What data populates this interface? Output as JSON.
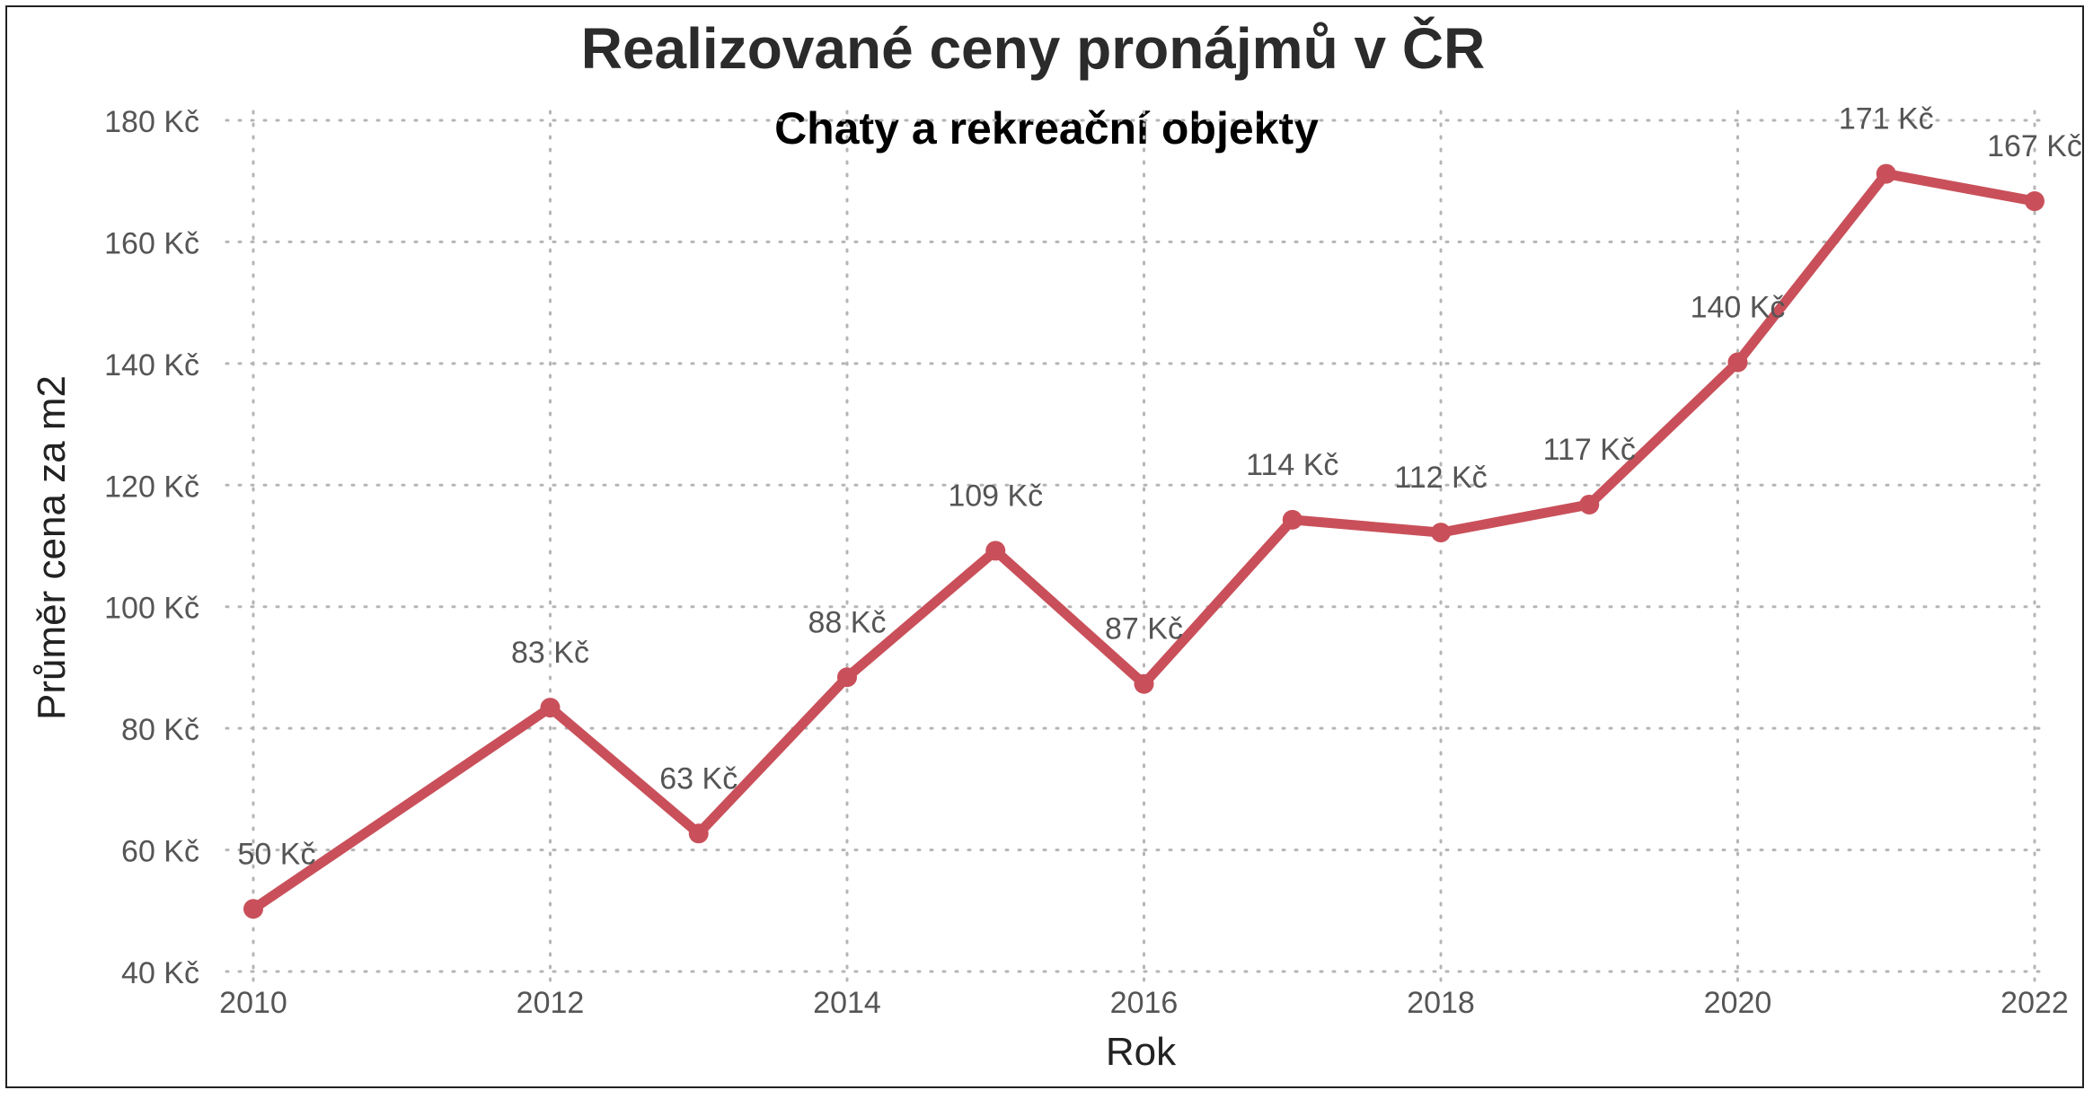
{
  "chart_data": {
    "type": "line",
    "title": "Realizované ceny pronájmů v ČR",
    "subtitle": "Chaty a rekreační objekty",
    "xlabel": "Rok",
    "ylabel": "Průměr cena za m2",
    "x_ticks": [
      "2010",
      "2012",
      "2014",
      "2016",
      "2018",
      "2020",
      "2022"
    ],
    "y_ticks": [
      "40 Kč",
      "60 Kč",
      "80 Kč",
      "100 Kč",
      "120 Kč",
      "140 Kč",
      "160 Kč",
      "180 Kč"
    ],
    "xlim": [
      2010,
      2022
    ],
    "ylim": [
      40,
      180
    ],
    "grid": true,
    "series": [
      {
        "color": "#c9505a",
        "points": [
          {
            "x": 2010,
            "y": 50.3,
            "label": "50 Kč"
          },
          {
            "x": 2012,
            "y": 83.4,
            "label": "83 Kč"
          },
          {
            "x": 2013,
            "y": 62.7,
            "label": "63 Kč"
          },
          {
            "x": 2014,
            "y": 88.4,
            "label": "88 Kč"
          },
          {
            "x": 2015,
            "y": 109.2,
            "label": "109 Kč"
          },
          {
            "x": 2016,
            "y": 87.3,
            "label": "87 Kč"
          },
          {
            "x": 2017,
            "y": 114.3,
            "label": "114 Kč"
          },
          {
            "x": 2018,
            "y": 112.2,
            "label": "112 Kč"
          },
          {
            "x": 2019,
            "y": 116.8,
            "label": "117 Kč"
          },
          {
            "x": 2020,
            "y": 140.2,
            "label": "140 Kč"
          },
          {
            "x": 2021,
            "y": 171.2,
            "label": "171 Kč"
          },
          {
            "x": 2022,
            "y": 166.7,
            "label": "167 Kč"
          }
        ]
      }
    ]
  }
}
